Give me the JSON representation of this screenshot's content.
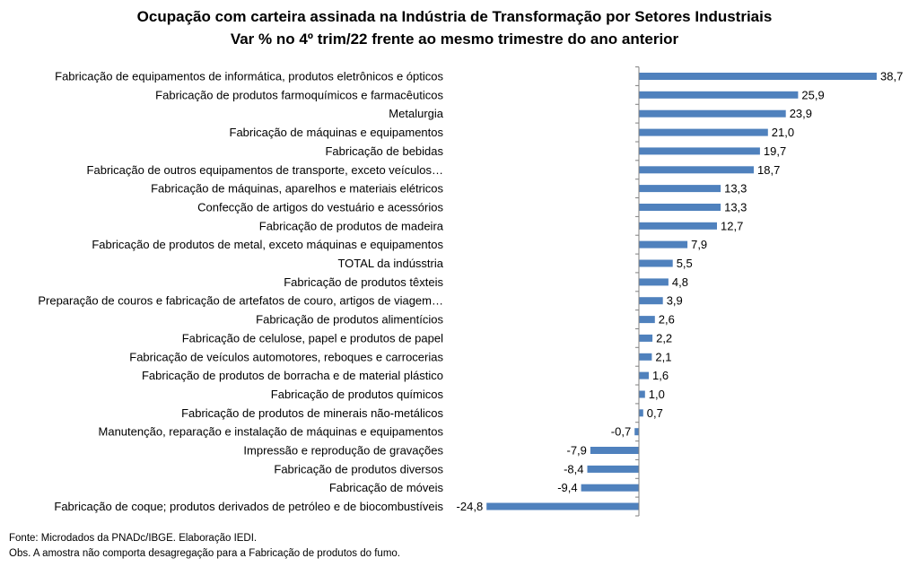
{
  "chart_data": {
    "type": "bar",
    "orientation": "horizontal",
    "title": "Ocupação com carteira assinada  na Indústria de Transformação por Setores Industriais",
    "subtitle": "Var % no 4º trim/22 frente ao mesmo trimestre do ano anterior",
    "categories": [
      "Fabricação de equipamentos de informática, produtos eletrônicos e ópticos",
      "Fabricação de produtos farmoquímicos e farmacêuticos",
      "Metalurgia",
      "Fabricação de máquinas e equipamentos",
      "Fabricação de bebidas",
      "Fabricação de outros equipamentos de transporte, exceto veículos…",
      "Fabricação de máquinas, aparelhos e materiais elétricos",
      "Confecção de artigos do vestuário e acessórios",
      "Fabricação de produtos de madeira",
      "Fabricação de produtos de metal, exceto máquinas e equipamentos",
      "TOTAL da indússtria",
      "Fabricação de produtos têxteis",
      "Preparação de couros e fabricação de artefatos de couro, artigos de viagem…",
      "Fabricação de produtos alimentícios",
      "Fabricação de celulose, papel e produtos de papel",
      "Fabricação de veículos automotores, reboques e carrocerias",
      "Fabricação de produtos de borracha e de material plástico",
      "Fabricação de produtos químicos",
      "Fabricação de produtos de minerais não-metálicos",
      "Manutenção, reparação e instalação de máquinas e equipamentos",
      "Impressão e reprodução de gravações",
      "Fabricação de produtos diversos",
      "Fabricação de móveis",
      "Fabricação de coque; produtos derivados de petróleo e de biocombustíveis"
    ],
    "values": [
      38.7,
      25.9,
      23.9,
      21.0,
      19.7,
      18.7,
      13.3,
      13.3,
      12.7,
      7.9,
      5.5,
      4.8,
      3.9,
      2.6,
      2.2,
      2.1,
      1.6,
      1.0,
      0.7,
      -0.7,
      -7.9,
      -8.4,
      -9.4,
      -24.8
    ],
    "value_labels": [
      "38,7",
      "25,9",
      "23,9",
      "21,0",
      "19,7",
      "18,7",
      "13,3",
      "13,3",
      "12,7",
      "7,9",
      "5,5",
      "4,8",
      "3,9",
      "2,6",
      "2,2",
      "2,1",
      "1,6",
      "1,0",
      "0,7",
      "-0,7",
      "-7,9",
      "-8,4",
      "-9,4",
      "-24,8"
    ],
    "bar_color": "#4F81BD",
    "axis_color": "#808080",
    "xlim": [
      -24.8,
      38.7
    ],
    "grid": false,
    "legend": "none"
  },
  "notes": {
    "source": "Fonte: Microdados da PNADc/IBGE. Elaboração IEDI.",
    "obs": "Obs. A amostra não comporta desagregação para a Fabricação de produtos do fumo."
  }
}
